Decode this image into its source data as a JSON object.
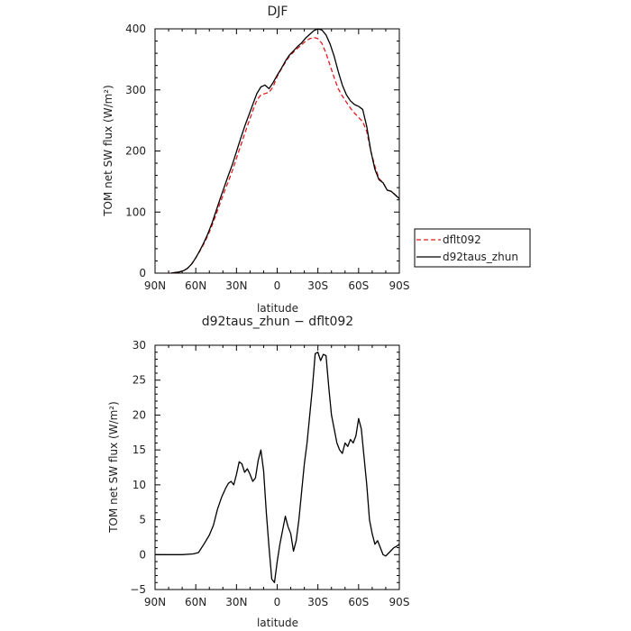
{
  "chart_data": [
    {
      "type": "line",
      "title": "DJF",
      "xlabel": "latitude",
      "ylabel": "TOM net SW flux (W/m²)",
      "xlim": [
        -90,
        90
      ],
      "ylim": [
        0,
        400
      ],
      "xticks": [
        -90,
        -60,
        -30,
        0,
        30,
        60,
        90
      ],
      "xtick_labels": [
        "90N",
        "60N",
        "30N",
        "0",
        "30S",
        "60S",
        "90S"
      ],
      "yticks": [
        0,
        100,
        200,
        300,
        400
      ],
      "ytick_labels": [
        "0",
        "100",
        "200",
        "300",
        "400"
      ],
      "legend_position": "right-outside",
      "series": [
        {
          "name": "dflt092",
          "color": "#e41a1c",
          "dash": "dashed",
          "x": [
            -78,
            -75,
            -72,
            -69,
            -66,
            -63,
            -60,
            -57,
            -54,
            -51,
            -48,
            -45,
            -42,
            -39,
            -36,
            -33,
            -30,
            -27,
            -24,
            -21,
            -18,
            -15,
            -12,
            -9,
            -6,
            -3,
            0,
            3,
            6,
            9,
            12,
            15,
            18,
            21,
            24,
            27,
            30,
            33,
            36,
            39,
            42,
            45,
            48,
            51,
            54,
            57,
            60,
            63,
            66,
            69,
            72,
            75,
            78,
            81,
            84,
            87,
            90
          ],
          "values": [
            0,
            1,
            2,
            4,
            8,
            15,
            25,
            36,
            48,
            62,
            78,
            96,
            115,
            133,
            150,
            168,
            188,
            208,
            228,
            247,
            266,
            283,
            292,
            294,
            296,
            305,
            322,
            334,
            345,
            355,
            362,
            368,
            374,
            380,
            384,
            386,
            384,
            376,
            360,
            340,
            320,
            302,
            290,
            280,
            270,
            262,
            255,
            248,
            232,
            200,
            175,
            155,
            148,
            136,
            134,
            128,
            122
          ]
        },
        {
          "name": "d92taus_zhun",
          "color": "#000000",
          "dash": "solid",
          "x": [
            -78,
            -75,
            -72,
            -69,
            -66,
            -63,
            -60,
            -57,
            -54,
            -51,
            -48,
            -45,
            -42,
            -39,
            -36,
            -33,
            -30,
            -27,
            -24,
            -21,
            -18,
            -15,
            -12,
            -9,
            -6,
            -3,
            0,
            3,
            6,
            9,
            12,
            15,
            18,
            21,
            24,
            27,
            30,
            33,
            36,
            39,
            42,
            45,
            48,
            51,
            54,
            57,
            60,
            63,
            66,
            69,
            72,
            75,
            78,
            81,
            84,
            87,
            90
          ],
          "values": [
            0,
            1,
            2,
            4,
            8,
            15,
            25,
            37,
            50,
            65,
            82,
            102,
            122,
            141,
            160,
            178,
            199,
            220,
            240,
            258,
            276,
            294,
            305,
            308,
            302,
            312,
            324,
            335,
            347,
            357,
            364,
            371,
            377,
            385,
            391,
            397,
            400,
            398,
            390,
            375,
            355,
            330,
            308,
            292,
            282,
            276,
            273,
            268,
            240,
            200,
            170,
            153,
            148,
            136,
            134,
            128,
            122
          ]
        }
      ]
    },
    {
      "type": "line",
      "title": "d92taus_zhun − dflt092",
      "xlabel": "latitude",
      "ylabel": "TOM net SW flux (W/m²)",
      "xlim": [
        -90,
        90
      ],
      "ylim": [
        -5,
        30
      ],
      "xticks": [
        -90,
        -60,
        -30,
        0,
        30,
        60,
        90
      ],
      "xtick_labels": [
        "90N",
        "60N",
        "30N",
        "0",
        "30S",
        "60S",
        "90S"
      ],
      "yticks": [
        -5,
        0,
        5,
        10,
        15,
        20,
        25,
        30
      ],
      "ytick_labels": [
        "−5",
        "0",
        "5",
        "10",
        "15",
        "20",
        "25",
        "30"
      ],
      "series": [
        {
          "color": "#000000",
          "dash": "solid",
          "x": [
            -90,
            -80,
            -70,
            -62,
            -58,
            -54,
            -50,
            -47,
            -44,
            -41,
            -38,
            -36,
            -34,
            -32,
            -30,
            -28,
            -26,
            -24,
            -22,
            -20,
            -18,
            -16,
            -14,
            -12,
            -10,
            -8,
            -6,
            -4,
            -2,
            0,
            2,
            4,
            6,
            8,
            10,
            12,
            14,
            16,
            18,
            20,
            22,
            24,
            26,
            28,
            30,
            32,
            34,
            36,
            38,
            40,
            42,
            44,
            46,
            48,
            50,
            52,
            54,
            56,
            58,
            60,
            62,
            64,
            66,
            68,
            70,
            72,
            74,
            76,
            78,
            80,
            82,
            84,
            86,
            88,
            90
          ],
          "values": [
            0,
            0,
            0,
            0.1,
            0.3,
            1.5,
            2.8,
            4.2,
            6.5,
            8.2,
            9.5,
            10.2,
            10.5,
            10,
            11.5,
            13.3,
            13,
            11.8,
            12.3,
            11.5,
            10.5,
            11,
            13.5,
            15,
            12,
            6,
            1,
            -3.5,
            -4,
            -1,
            1.5,
            3.5,
            5.5,
            4,
            3,
            0.5,
            2,
            5,
            9,
            13,
            16,
            20,
            24,
            28.8,
            29,
            27.8,
            28.7,
            28.5,
            24,
            20,
            18,
            16,
            15,
            14.5,
            16,
            15.5,
            16.5,
            16,
            17,
            19.5,
            18,
            14,
            10,
            5,
            3,
            1.5,
            2,
            1,
            0,
            -0.2,
            0.2,
            0.6,
            1,
            1.2,
            1.5
          ]
        }
      ]
    }
  ]
}
